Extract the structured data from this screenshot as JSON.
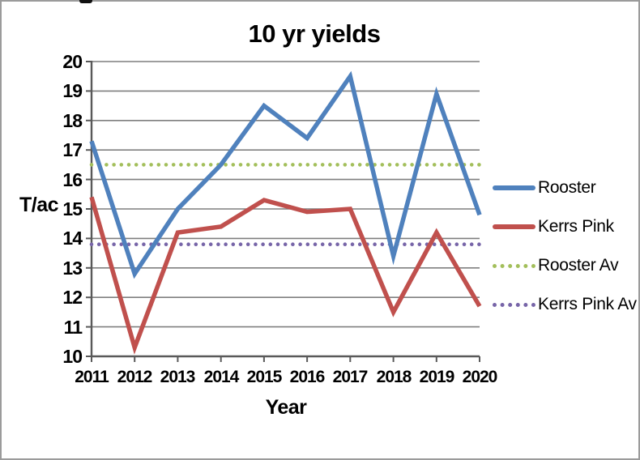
{
  "chart_data": {
    "type": "line",
    "title": "10 yr yields",
    "xlabel": "Year",
    "ylabel": "T/ac",
    "x": [
      2011,
      2012,
      2013,
      2014,
      2015,
      2016,
      2017,
      2018,
      2019,
      2020
    ],
    "ylim": [
      10,
      20
    ],
    "ytick_step": 1,
    "yticks": [
      "20",
      "19",
      "18",
      "17",
      "16",
      "15",
      "14",
      "13",
      "12",
      "11",
      "10"
    ],
    "grid": true,
    "legend_position": "right",
    "series": [
      {
        "name": "Rooster",
        "color": "#4F81BD",
        "style": "solid",
        "values": [
          17.3,
          12.8,
          15.0,
          16.5,
          18.5,
          17.4,
          19.5,
          13.4,
          18.9,
          14.8
        ]
      },
      {
        "name": "Kerrs Pink",
        "color": "#C0504D",
        "style": "solid",
        "values": [
          15.4,
          10.3,
          14.2,
          14.4,
          15.3,
          14.9,
          15.0,
          11.5,
          14.2,
          11.7
        ]
      },
      {
        "name": "Rooster Av",
        "color": "#A3BF5B",
        "style": "dotted",
        "values": [
          16.5,
          16.5,
          16.5,
          16.5,
          16.5,
          16.5,
          16.5,
          16.5,
          16.5,
          16.5
        ]
      },
      {
        "name": "Kerrs Pink Av",
        "color": "#7765A8",
        "style": "dotted",
        "values": [
          13.8,
          13.8,
          13.8,
          13.8,
          13.8,
          13.8,
          13.8,
          13.8,
          13.8,
          13.8
        ]
      }
    ],
    "axis_color": "#595959",
    "grid_color": "#7F7F7F"
  }
}
